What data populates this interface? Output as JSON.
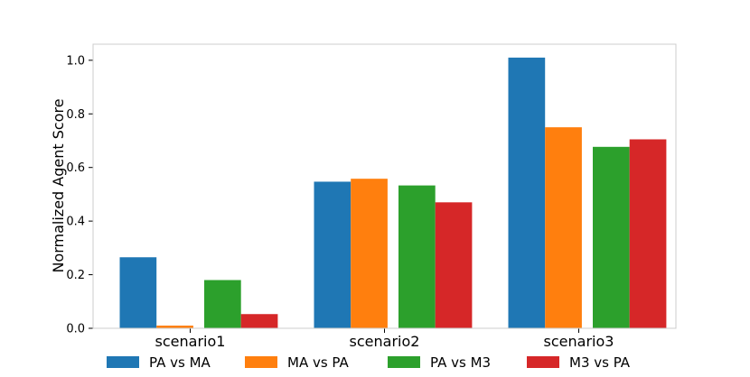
{
  "chart_data": {
    "type": "bar",
    "title": "",
    "xlabel": "",
    "ylabel": "Normalized Agent Score",
    "categories": [
      "scenario1",
      "scenario2",
      "scenario3"
    ],
    "ylim": [
      0,
      1.06
    ],
    "yticks": [
      "0.0",
      "0.2",
      "0.4",
      "0.6",
      "0.8",
      "1.0"
    ],
    "grid": false,
    "legend_position": "bottom",
    "series": [
      {
        "name": "PA vs MA",
        "color": "#1f77b4",
        "values": [
          0.265,
          0.547,
          1.01
        ]
      },
      {
        "name": "MA vs PA",
        "color": "#ff7f0e",
        "values": [
          0.01,
          0.558,
          0.75
        ]
      },
      {
        "name": "PA vs M3",
        "color": "#2ca02c",
        "values": [
          0.18,
          0.533,
          0.677
        ]
      },
      {
        "name": "M3 vs PA",
        "color": "#d62728",
        "values": [
          0.053,
          0.47,
          0.705
        ]
      }
    ]
  }
}
